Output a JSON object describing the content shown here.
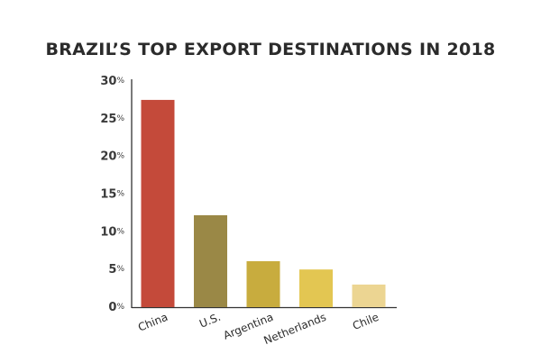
{
  "chart_data": {
    "type": "bar",
    "title": "BRAZIL’S TOP EXPORT DESTINATIONS IN 2018",
    "xlabel": "",
    "ylabel": "",
    "categories": [
      "China",
      "U.S.",
      "Argentina",
      "Netherlands",
      "Chile"
    ],
    "values": [
      27.5,
      12.2,
      6.1,
      5.0,
      3.0
    ],
    "colors": [
      "#c44a3a",
      "#9a8846",
      "#c8ac3e",
      "#e3c652",
      "#ecd592"
    ],
    "ylim": [
      0,
      30
    ],
    "yticks": [
      0,
      5,
      10,
      15,
      20,
      25,
      30
    ],
    "ytick_labels": [
      "0%",
      "5%",
      "10%",
      "15%",
      "20%",
      "25%",
      "30%"
    ],
    "grid": false,
    "legend": "none"
  }
}
